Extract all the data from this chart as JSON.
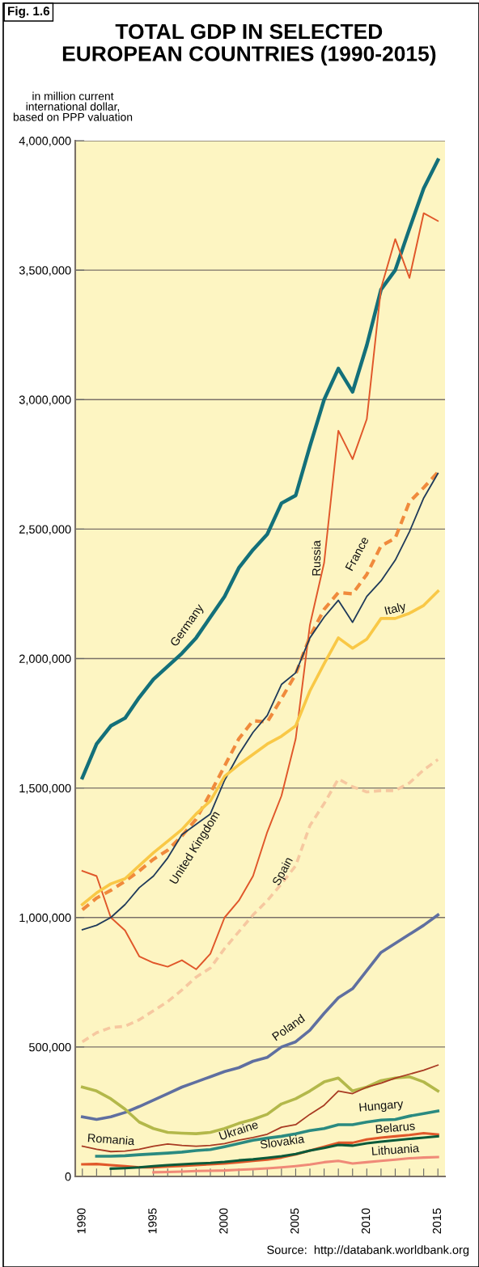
{
  "chart_data": {
    "type": "line",
    "title": "TOTAL GDP IN SELECTED\nEUROPEAN COUNTRIES (1990-2015)",
    "ylabel": "in million current\ninternational dollar,\nbased on PPP valuation",
    "annotations": [
      "Fig. 1.6",
      "Source:  http://databank.worldbank.org"
    ],
    "x": [
      1990,
      1991,
      1992,
      1993,
      1994,
      1995,
      1996,
      1997,
      1998,
      1999,
      2000,
      2001,
      2002,
      2003,
      2004,
      2005,
      2006,
      2007,
      2008,
      2009,
      2010,
      2011,
      2012,
      2013,
      2014,
      2015
    ],
    "xlim": [
      1989.5,
      2015.5
    ],
    "xticks": [
      {
        "value": 1990,
        "label": "1990"
      },
      {
        "value": 1991,
        "label": null
      },
      {
        "value": 1992,
        "label": null
      },
      {
        "value": 1993,
        "label": null
      },
      {
        "value": 1994,
        "label": null
      },
      {
        "value": 1995,
        "label": "1995"
      },
      {
        "value": 1996,
        "label": null
      },
      {
        "value": 1997,
        "label": null
      },
      {
        "value": 1998,
        "label": null
      },
      {
        "value": 1999,
        "label": null
      },
      {
        "value": 2000,
        "label": "2000"
      },
      {
        "value": 2001,
        "label": null
      },
      {
        "value": 2002,
        "label": null
      },
      {
        "value": 2003,
        "label": null
      },
      {
        "value": 2004,
        "label": null
      },
      {
        "value": 2005,
        "label": "2005"
      },
      {
        "value": 2006,
        "label": null
      },
      {
        "value": 2007,
        "label": null
      },
      {
        "value": 2008,
        "label": null
      },
      {
        "value": 2009,
        "label": null
      },
      {
        "value": 2010,
        "label": "2010"
      },
      {
        "value": 2011,
        "label": null
      },
      {
        "value": 2012,
        "label": null
      },
      {
        "value": 2013,
        "label": null
      },
      {
        "value": 2014,
        "label": null
      },
      {
        "value": 2015,
        "label": "2015"
      }
    ],
    "ylim": [
      0,
      4000000
    ],
    "yticks": [
      0,
      {
        "value": 500000,
        "label": "500,000"
      },
      {
        "value": 1000000,
        "label": "1,000,000"
      },
      {
        "value": 1500000,
        "label": "1,500,000"
      },
      {
        "value": 2000000,
        "label": "2,000,000"
      },
      {
        "value": 2500000,
        "label": "2,500,000"
      },
      {
        "value": 3000000,
        "label": "3,000,000"
      },
      {
        "value": 3500000,
        "label": "3,500,000"
      },
      {
        "value": 4000000,
        "label": "4,000,000"
      }
    ],
    "grid": "y",
    "legend": false,
    "series": [
      {
        "name": "Germany",
        "color": "#13707a",
        "values": [
          1540000,
          1670000,
          1740000,
          1770000,
          1850000,
          1920000,
          1970000,
          2020000,
          2080000,
          2160000,
          2240000,
          2350000,
          2420000,
          2480000,
          2600000,
          2630000,
          2820000,
          3000000,
          3120000,
          3030000,
          3210000,
          3425000,
          3500000,
          3660000,
          3816000,
          3925000
        ]
      },
      {
        "name": "Russia",
        "color": "#e0572a",
        "values": [
          1180000,
          1160000,
          1000000,
          950000,
          850000,
          825000,
          810000,
          835000,
          800000,
          860000,
          1000000,
          1065000,
          1160000,
          1330000,
          1470000,
          1690000,
          2130000,
          2370000,
          2880000,
          2770000,
          2925000,
          3430000,
          3620000,
          3470000,
          3720000,
          3690000
        ]
      },
      {
        "name": "France",
        "color": "#f08a3c",
        "line_style": "dashed",
        "values": [
          1030000,
          1075000,
          1105000,
          1140000,
          1180000,
          1225000,
          1260000,
          1315000,
          1380000,
          1480000,
          1585000,
          1690000,
          1760000,
          1755000,
          1845000,
          1940000,
          2085000,
          2190000,
          2255000,
          2250000,
          2325000,
          2435000,
          2465000,
          2605000,
          2660000,
          2720000
        ]
      },
      {
        "name": "United Kingdom",
        "color": "#1f3a5a",
        "values": [
          953000,
          970000,
          1000000,
          1050000,
          1115000,
          1160000,
          1230000,
          1320000,
          1360000,
          1400000,
          1530000,
          1630000,
          1715000,
          1780000,
          1900000,
          1945000,
          2080000,
          2160000,
          2225000,
          2140000,
          2240000,
          2300000,
          2380000,
          2490000,
          2620000,
          2715000
        ]
      },
      {
        "name": "Italy",
        "color": "#f9c846",
        "values": [
          1050000,
          1095000,
          1130000,
          1150000,
          1200000,
          1250000,
          1295000,
          1340000,
          1400000,
          1450000,
          1545000,
          1590000,
          1630000,
          1670000,
          1700000,
          1740000,
          1875000,
          1980000,
          2080000,
          2040000,
          2075000,
          2155000,
          2155000,
          2175000,
          2205000,
          2260000
        ]
      },
      {
        "name": "Spain",
        "color": "#f6c8a0",
        "line_style": "dashed",
        "values": [
          520000,
          555000,
          575000,
          580000,
          605000,
          640000,
          675000,
          720000,
          770000,
          805000,
          880000,
          945000,
          1010000,
          1065000,
          1130000,
          1200000,
          1355000,
          1440000,
          1535000,
          1505000,
          1485000,
          1490000,
          1490000,
          1520000,
          1570000,
          1610000
        ]
      },
      {
        "name": "Poland",
        "color": "#5f6fa0",
        "values": [
          230000,
          220000,
          230000,
          247000,
          270000,
          295000,
          320000,
          345000,
          365000,
          385000,
          405000,
          420000,
          445000,
          460000,
          500000,
          520000,
          565000,
          630000,
          690000,
          725000,
          795000,
          865000,
          900000,
          935000,
          970000,
          1010000
        ]
      },
      {
        "name": "Ukraine",
        "color": "#b3b84a",
        "values": [
          345000,
          330000,
          300000,
          260000,
          210000,
          185000,
          170000,
          167000,
          165000,
          170000,
          185000,
          205000,
          220000,
          240000,
          280000,
          300000,
          330000,
          365000,
          380000,
          330000,
          345000,
          370000,
          380000,
          385000,
          365000,
          330000
        ]
      },
      {
        "name": "Romania",
        "color": "#a83a22",
        "values": [
          117000,
          105000,
          96000,
          98000,
          105000,
          117000,
          125000,
          120000,
          117000,
          120000,
          127000,
          140000,
          150000,
          163000,
          190000,
          200000,
          240000,
          275000,
          330000,
          320000,
          345000,
          360000,
          380000,
          395000,
          410000,
          430000
        ]
      },
      {
        "name": "Hungary",
        "color": "#2a8a80",
        "values": [
          null,
          78000,
          78000,
          80000,
          84000,
          87000,
          90000,
          94000,
          100000,
          104000,
          115000,
          127000,
          140000,
          148000,
          155000,
          165000,
          177000,
          185000,
          200000,
          200000,
          210000,
          218000,
          220000,
          233000,
          243000,
          253000
        ]
      },
      {
        "name": "Belarus",
        "color": "#e0582a",
        "values": [
          47000,
          48000,
          44000,
          40000,
          35000,
          35000,
          38000,
          41000,
          44000,
          47000,
          50000,
          55000,
          60000,
          65000,
          73000,
          85000,
          100000,
          115000,
          130000,
          130000,
          143000,
          150000,
          155000,
          160000,
          167000,
          162000
        ]
      },
      {
        "name": "Slovakia",
        "color": "#0a5a3a",
        "values": [
          null,
          null,
          30000,
          32000,
          35000,
          40000,
          44000,
          47000,
          50000,
          52000,
          56000,
          62000,
          66000,
          72000,
          78000,
          87000,
          100000,
          110000,
          122000,
          119000,
          128000,
          134000,
          140000,
          145000,
          150000,
          155000
        ]
      },
      {
        "name": "Lithuania",
        "color": "#f08a78",
        "values": [
          null,
          null,
          null,
          null,
          null,
          16000,
          17000,
          19000,
          21000,
          22000,
          23000,
          26000,
          28000,
          31000,
          35000,
          40000,
          46000,
          55000,
          60000,
          50000,
          55000,
          60000,
          65000,
          70000,
          73000,
          75000
        ]
      }
    ]
  }
}
